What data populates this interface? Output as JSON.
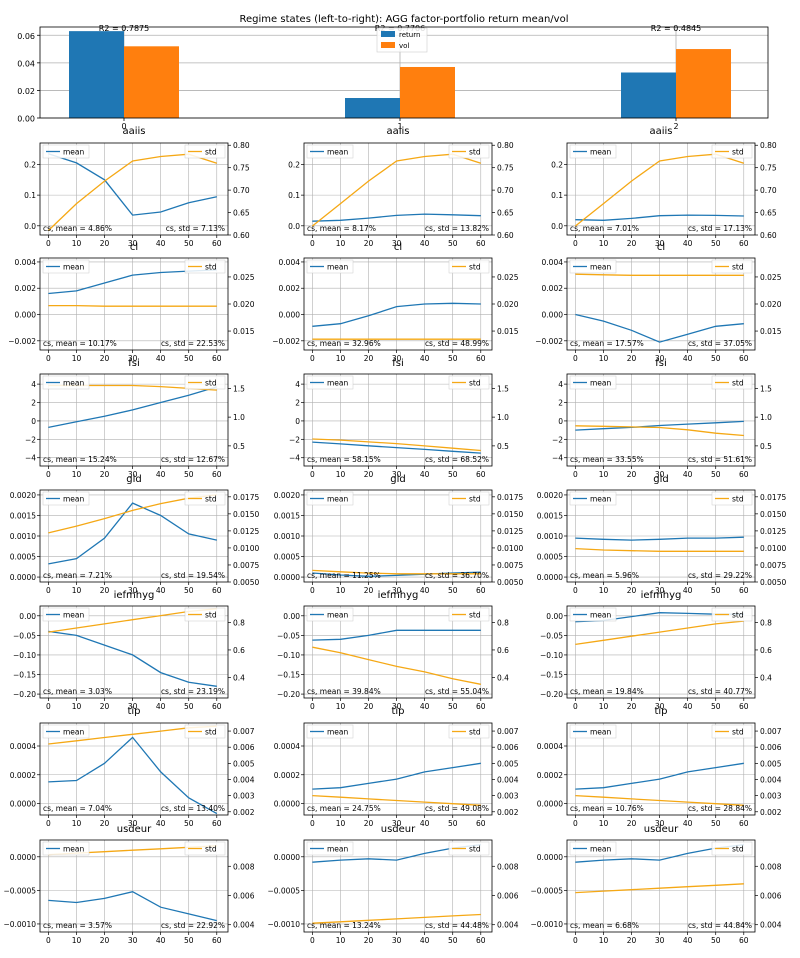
{
  "figure": {
    "title": "Regime states (left-to-right): AGG factor-portfolio return mean/vol"
  },
  "colors": {
    "return": "#1f77b4",
    "vol": "#ff7f0e",
    "mean_line": "#1f77b4",
    "std_line": "#f5a815",
    "grid": "#b0b0b0"
  },
  "chart_data": [
    {
      "type": "bar",
      "role": "top",
      "categories": [
        "0",
        "1",
        "2"
      ],
      "series": [
        {
          "name": "return",
          "values": [
            0.063,
            0.0145,
            0.033
          ]
        },
        {
          "name": "vol",
          "values": [
            0.052,
            0.037,
            0.05
          ]
        }
      ],
      "ylim": [
        0,
        0.066
      ],
      "yticks": [
        0.0,
        0.02,
        0.04,
        0.06
      ],
      "yticklabels": [
        "0.00",
        "0.02",
        "0.04",
        "0.06"
      ],
      "annotations": [
        "R2 = 0.7875",
        "R2 = 0.7706",
        "R2 = 0.4845"
      ],
      "legend": "top-center",
      "grid": true
    },
    {
      "type": "line",
      "role": "grid",
      "x": [
        0,
        10,
        20,
        30,
        40,
        50,
        60
      ],
      "xlim": [
        -3,
        64
      ],
      "rows": [
        {
          "label": "aaiis",
          "ylim_left": [
            -0.03,
            0.27
          ],
          "yticks_left": [
            0.0,
            0.1,
            0.2
          ],
          "yticklabels_left": [
            "0.0",
            "0.1",
            "0.2"
          ],
          "ylim_right": [
            0.6,
            0.805
          ],
          "yticks_right": [
            0.6,
            0.65,
            0.7,
            0.75,
            0.8
          ],
          "yticklabels_right": [
            "0.60",
            "0.65",
            "0.70",
            "0.75",
            "0.80"
          ],
          "panels": [
            {
              "mean": [
                0.235,
                0.205,
                0.15,
                0.035,
                0.045,
                0.075,
                0.095
              ],
              "std": [
                0.61,
                0.67,
                0.72,
                0.765,
                0.775,
                0.78,
                0.76
              ],
              "cs_mean": "cs, mean = 4.86%",
              "cs_std": "cs, std = 7.13%"
            },
            {
              "mean": [
                0.015,
                0.018,
                0.025,
                0.034,
                0.038,
                0.036,
                0.033
              ],
              "std": [
                0.62,
                0.67,
                0.72,
                0.765,
                0.775,
                0.78,
                0.76
              ],
              "cs_mean": "cs, mean = 8.17%",
              "cs_std": "cs, std = 13.82%"
            },
            {
              "mean": [
                0.02,
                0.018,
                0.024,
                0.033,
                0.035,
                0.034,
                0.032
              ],
              "std": [
                0.62,
                0.67,
                0.72,
                0.765,
                0.775,
                0.78,
                0.76
              ],
              "cs_mean": "cs, mean = 7.01%",
              "cs_std": "cs, std = 17.13%"
            }
          ]
        },
        {
          "label": "cl",
          "ylim_left": [
            -0.0027,
            0.0043
          ],
          "yticks_left": [
            -0.002,
            0.0,
            0.002,
            0.004
          ],
          "yticklabels_left": [
            "−0.002",
            "0.000",
            "0.002",
            "0.004"
          ],
          "ylim_right": [
            0.0115,
            0.0285
          ],
          "yticks_right": [
            0.015,
            0.02,
            0.025
          ],
          "yticklabels_right": [
            "0.015",
            "0.020",
            "0.025"
          ],
          "panels": [
            {
              "mean": [
                0.0016,
                0.0018,
                0.0024,
                0.003,
                0.0032,
                0.0033,
                0.0034
              ],
              "std": [
                0.0197,
                0.0197,
                0.0196,
                0.0196,
                0.0196,
                0.0196,
                0.0196
              ],
              "cs_mean": "cs, mean = 10.17%",
              "cs_std": "cs, std = 22.53%"
            },
            {
              "mean": [
                -0.0009,
                -0.0007,
                -0.0001,
                0.0006,
                0.0008,
                0.00085,
                0.0008
              ],
              "std": [
                0.0135,
                0.0135,
                0.0135,
                0.0135,
                0.0135,
                0.0135,
                0.0135
              ],
              "cs_mean": "cs, mean = 32.96%",
              "cs_std": "cs, std = 48.99%"
            },
            {
              "mean": [
                0.0,
                -0.0005,
                -0.0012,
                -0.0021,
                -0.0015,
                -0.0009,
                -0.0007
              ],
              "std": [
                0.0255,
                0.0254,
                0.0253,
                0.0253,
                0.0253,
                0.0253,
                0.0253
              ],
              "cs_mean": "cs, mean = 17.57%",
              "cs_std": "cs, std = 37.05%"
            }
          ]
        },
        {
          "label": "fsi",
          "ylim_left": [
            -4.9,
            5.1
          ],
          "yticks_left": [
            -4,
            -2,
            0,
            2,
            4
          ],
          "yticklabels_left": [
            "−4",
            "−2",
            "0",
            "2",
            "4"
          ],
          "ylim_right": [
            0.15,
            1.75
          ],
          "yticks_right": [
            0.5,
            1.0,
            1.5
          ],
          "yticklabels_right": [
            "0.5",
            "1.0",
            "1.5"
          ],
          "panels": [
            {
              "mean": [
                -0.7,
                -0.1,
                0.5,
                1.2,
                2.0,
                2.8,
                3.7
              ],
              "std": [
                1.55,
                1.55,
                1.55,
                1.55,
                1.53,
                1.5,
                1.47
              ],
              "cs_mean": "cs, mean = 15.24%",
              "cs_std": "cs, std = 12.67%"
            },
            {
              "mean": [
                -2.3,
                -2.5,
                -2.7,
                -2.9,
                -3.1,
                -3.3,
                -3.5
              ],
              "std": [
                0.62,
                0.6,
                0.57,
                0.54,
                0.5,
                0.46,
                0.42
              ],
              "cs_mean": "cs, mean = 58.15%",
              "cs_std": "cs, std = 68.52%"
            },
            {
              "mean": [
                -1.0,
                -0.85,
                -0.7,
                -0.5,
                -0.35,
                -0.2,
                -0.05
              ],
              "std": [
                0.85,
                0.84,
                0.83,
                0.82,
                0.78,
                0.72,
                0.68
              ],
              "cs_mean": "cs, mean = 33.55%",
              "cs_std": "cs, std = 51.61%"
            }
          ]
        },
        {
          "label": "gld",
          "ylim_left": [
            -0.00012,
            0.00212
          ],
          "yticks_left": [
            0.0,
            0.0005,
            0.001,
            0.0015,
            0.002
          ],
          "yticklabels_left": [
            "0.0000",
            "0.0005",
            "0.0010",
            "0.0015",
            "0.0020"
          ],
          "ylim_right": [
            0.005,
            0.0185
          ],
          "yticks_right": [
            0.005,
            0.0075,
            0.01,
            0.0125,
            0.015,
            0.0175
          ],
          "yticklabels_right": [
            "0.0050",
            "0.0075",
            "0.0100",
            "0.0125",
            "0.0150",
            "0.0175"
          ],
          "panels": [
            {
              "mean": [
                0.00032,
                0.00045,
                0.00095,
                0.0018,
                0.0015,
                0.00105,
                0.0009
              ],
              "std": [
                0.0122,
                0.0132,
                0.0143,
                0.0155,
                0.0165,
                0.0173,
                0.0178
              ],
              "cs_mean": "cs, mean = 7.21%",
              "cs_std": "cs, std = 19.54%"
            },
            {
              "mean": [
                0.0001,
                5e-05,
                2e-05,
                4e-05,
                7e-05,
                0.0001,
                0.00012
              ],
              "std": [
                0.0067,
                0.0065,
                0.0063,
                0.0062,
                0.0062,
                0.0062,
                0.0062
              ],
              "cs_mean": "cs, mean = 11.25%",
              "cs_std": "cs, std = 36.70%"
            },
            {
              "mean": [
                0.00095,
                0.00092,
                0.0009,
                0.00092,
                0.00095,
                0.00095,
                0.00097
              ],
              "std": [
                0.0099,
                0.0097,
                0.0096,
                0.0095,
                0.0095,
                0.0095,
                0.0095
              ],
              "cs_mean": "cs, mean = 5.96%",
              "cs_std": "cs, std = 29.22%"
            }
          ]
        },
        {
          "label": "iefmhyg",
          "ylim_left": [
            -0.21,
            0.025
          ],
          "yticks_left": [
            0.0,
            -0.05,
            -0.1,
            -0.15,
            -0.2
          ],
          "yticklabels_left": [
            "0.00",
            "−0.05",
            "−0.10",
            "−0.15",
            "−0.20"
          ],
          "ylim_right": [
            0.25,
            0.92
          ],
          "yticks_right": [
            0.4,
            0.6,
            0.8
          ],
          "yticklabels_right": [
            "0.4",
            "0.6",
            "0.8"
          ],
          "panels": [
            {
              "mean": [
                -0.04,
                -0.05,
                -0.075,
                -0.1,
                -0.145,
                -0.17,
                -0.18
              ],
              "std": [
                0.73,
                0.76,
                0.79,
                0.82,
                0.85,
                0.88,
                0.9
              ],
              "cs_mean": "cs, mean = 3.03%",
              "cs_std": "cs, std = 23.19%"
            },
            {
              "mean": [
                -0.062,
                -0.06,
                -0.05,
                -0.037,
                -0.037,
                -0.037,
                -0.037
              ],
              "std": [
                0.62,
                0.58,
                0.53,
                0.48,
                0.44,
                0.39,
                0.35
              ],
              "cs_mean": "cs, mean = 39.84%",
              "cs_std": "cs, std = 55.04%"
            },
            {
              "mean": [
                -0.015,
                -0.012,
                -0.002,
                0.008,
                0.006,
                0.004,
                0.004
              ],
              "std": [
                0.64,
                0.67,
                0.7,
                0.73,
                0.76,
                0.79,
                0.81
              ],
              "cs_mean": "cs, mean = 19.84%",
              "cs_std": "cs, std = 40.77%"
            }
          ]
        },
        {
          "label": "tip",
          "ylim_left": [
            -8e-05,
            0.00056
          ],
          "yticks_left": [
            0.0,
            0.0002,
            0.0004
          ],
          "yticklabels_left": [
            "0.0000",
            "0.0002",
            "0.0004"
          ],
          "ylim_right": [
            0.0018,
            0.0075
          ],
          "yticks_right": [
            0.002,
            0.003,
            0.004,
            0.005,
            0.006,
            0.007
          ],
          "yticklabels_right": [
            "0.002",
            "0.003",
            "0.004",
            "0.005",
            "0.006",
            "0.007"
          ],
          "panels": [
            {
              "mean": [
                0.00015,
                0.00016,
                0.00028,
                0.00046,
                0.00022,
                4e-05,
                -7e-05
              ],
              "std": [
                0.0062,
                0.0064,
                0.0066,
                0.0068,
                0.007,
                0.0072,
                0.0073
              ],
              "cs_mean": "cs, mean = 7.04%",
              "cs_std": "cs, std = 13.40%"
            },
            {
              "mean": [
                0.0001,
                0.00011,
                0.00014,
                0.00017,
                0.00022,
                0.00025,
                0.00028
              ],
              "std": [
                0.003,
                0.0029,
                0.0028,
                0.0027,
                0.0026,
                0.0025,
                0.0024
              ],
              "cs_mean": "cs, mean = 24.75%",
              "cs_std": "cs, std = 49.08%"
            },
            {
              "mean": [
                0.0001,
                0.00011,
                0.00014,
                0.00017,
                0.00022,
                0.00025,
                0.00028
              ],
              "std": [
                0.003,
                0.0029,
                0.0028,
                0.0027,
                0.0026,
                0.0025,
                0.0024
              ],
              "cs_mean": "cs, mean = 10.76%",
              "cs_std": "cs, std = 28.84%"
            }
          ]
        },
        {
          "label": "usdeur",
          "ylim_left": [
            -0.00112,
            0.00025
          ],
          "yticks_left": [
            0.0,
            -0.0005,
            -0.001
          ],
          "yticklabels_left": [
            "0.0000",
            "−0.0005",
            "−0.0010"
          ],
          "ylim_right": [
            0.0035,
            0.0098
          ],
          "yticks_right": [
            0.004,
            0.006,
            0.008
          ],
          "yticklabels_right": [
            "0.004",
            "0.006",
            "0.008"
          ],
          "panels": [
            {
              "mean": [
                -0.00065,
                -0.00068,
                -0.00062,
                -0.00052,
                -0.00075,
                -0.00085,
                -0.00095
              ],
              "std": [
                0.0088,
                0.0089,
                0.009,
                0.0091,
                0.0092,
                0.0093,
                0.0094
              ],
              "cs_mean": "cs, mean = 3.57%",
              "cs_std": "cs, std = 22.92%"
            },
            {
              "mean": [
                -8e-05,
                -5e-05,
                -3e-05,
                -5e-05,
                5e-05,
                0.00013,
                0.00018
              ],
              "std": [
                0.0041,
                0.0042,
                0.0043,
                0.0044,
                0.0045,
                0.0046,
                0.0047
              ],
              "cs_mean": "cs, mean = 13.24%",
              "cs_std": "cs, std = 44.48%"
            },
            {
              "mean": [
                -8e-05,
                -5e-05,
                -3e-05,
                -5e-05,
                5e-05,
                0.00013,
                0.00018
              ],
              "std": [
                0.0062,
                0.0063,
                0.0064,
                0.0065,
                0.0066,
                0.0067,
                0.0068
              ],
              "cs_mean": "cs, mean = 6.68%",
              "cs_std": "cs, std = 44.84%"
            }
          ]
        }
      ],
      "legend_mean": "mean",
      "legend_std": "std",
      "grid": true
    }
  ]
}
